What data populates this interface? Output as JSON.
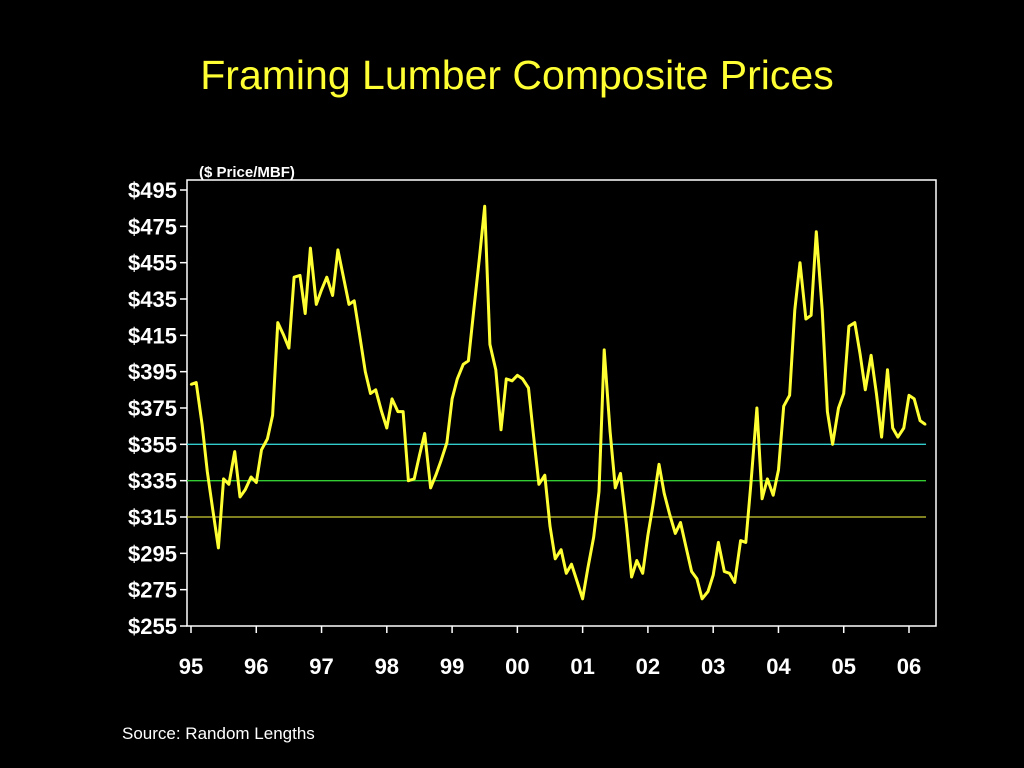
{
  "slide": {
    "title": "Framing Lumber Composite Prices",
    "source": "Source: Random Lengths"
  },
  "colors": {
    "background": "#000000",
    "title": "#ffff33",
    "series": "#ffff33",
    "axis": "#ffffff",
    "ref_355": "#33cccc",
    "ref_335": "#33cc33",
    "ref_315": "#cccc33"
  },
  "chart_data": {
    "type": "line",
    "title": "",
    "ylabel": "($ Price/MBF)",
    "xlabel": "",
    "ylim": [
      255,
      495
    ],
    "yticks": [
      495,
      475,
      455,
      435,
      415,
      395,
      375,
      355,
      335,
      315,
      295,
      275,
      255
    ],
    "ytick_labels": [
      "$495",
      "$475",
      "$455",
      "$435",
      "$415",
      "$395",
      "$375",
      "$355",
      "$335",
      "$315",
      "$295",
      "$275",
      "$255"
    ],
    "xlim": [
      1995.0,
      2006.35
    ],
    "xticks": [
      1995,
      1996,
      1997,
      1998,
      1999,
      2000,
      2001,
      2002,
      2003,
      2004,
      2005,
      2006
    ],
    "xtick_labels": [
      "95",
      "96",
      "97",
      "98",
      "99",
      "00",
      "01",
      "02",
      "03",
      "04",
      "05",
      "06"
    ],
    "grid": false,
    "reference_lines": [
      {
        "y": 355,
        "color": "#33cccc"
      },
      {
        "y": 335,
        "color": "#33cc33"
      },
      {
        "y": 315,
        "color": "#cccc33"
      }
    ],
    "series": [
      {
        "x": [
          1995.0,
          1995.08,
          1995.17,
          1995.25,
          1995.33,
          1995.42,
          1995.5,
          1995.58,
          1995.67,
          1995.75,
          1995.83,
          1995.92,
          1996.0,
          1996.08,
          1996.17,
          1996.25,
          1996.33,
          1996.42,
          1996.5,
          1996.58,
          1996.67,
          1996.75,
          1996.83,
          1996.92,
          1997.0,
          1997.08,
          1997.17,
          1997.25,
          1997.33,
          1997.42,
          1997.5,
          1997.58,
          1997.67,
          1997.75,
          1997.83,
          1997.92,
          1998.0,
          1998.08,
          1998.17,
          1998.25,
          1998.33,
          1998.42,
          1998.5,
          1998.58,
          1998.67,
          1998.75,
          1998.83,
          1998.92,
          1999.0,
          1999.08,
          1999.17,
          1999.25,
          1999.33,
          1999.42,
          1999.5,
          1999.58,
          1999.67,
          1999.75,
          1999.83,
          1999.92,
          2000.0,
          2000.08,
          2000.17,
          2000.25,
          2000.33,
          2000.42,
          2000.5,
          2000.58,
          2000.67,
          2000.75,
          2000.83,
          2000.92,
          2001.0,
          2001.08,
          2001.17,
          2001.25,
          2001.33,
          2001.42,
          2001.5,
          2001.58,
          2001.67,
          2001.75,
          2001.83,
          2001.92,
          2002.0,
          2002.08,
          2002.17,
          2002.25,
          2002.33,
          2002.42,
          2002.5,
          2002.58,
          2002.67,
          2002.75,
          2002.83,
          2002.92,
          2003.0,
          2003.08,
          2003.17,
          2003.25,
          2003.33,
          2003.42,
          2003.5,
          2003.58,
          2003.67,
          2003.75,
          2003.83,
          2003.92,
          2004.0,
          2004.08,
          2004.17,
          2004.25,
          2004.33,
          2004.42,
          2004.5,
          2004.58,
          2004.67,
          2004.75,
          2004.83,
          2004.92,
          2005.0,
          2005.08,
          2005.17,
          2005.25,
          2005.33,
          2005.42,
          2005.5,
          2005.58,
          2005.67,
          2005.75,
          2005.83,
          2005.92,
          2006.0,
          2006.08,
          2006.17,
          2006.25
        ],
        "values": [
          388,
          389,
          366,
          340,
          320,
          298,
          336,
          333,
          351,
          326,
          330,
          337,
          334,
          352,
          358,
          371,
          422,
          415,
          408,
          447,
          448,
          427,
          463,
          432,
          440,
          447,
          437,
          462,
          448,
          432,
          434,
          416,
          395,
          383,
          385,
          373,
          364,
          380,
          373,
          373,
          335,
          336,
          349,
          361,
          331,
          338,
          346,
          356,
          380,
          391,
          399,
          401,
          428,
          458,
          486,
          410,
          396,
          363,
          391,
          390,
          393,
          391,
          386,
          359,
          333,
          338,
          310,
          292,
          297,
          284,
          289,
          279,
          270,
          287,
          304,
          329,
          407,
          362,
          331,
          339,
          311,
          282,
          291,
          284,
          305,
          322,
          344,
          328,
          317,
          306,
          312,
          299,
          285,
          281,
          270,
          274,
          283,
          301,
          285,
          284,
          279,
          302,
          301,
          334,
          375,
          325,
          336,
          327,
          341,
          376,
          382,
          429,
          455,
          424,
          426,
          472,
          429,
          373,
          355,
          375,
          383,
          420,
          422,
          405,
          385,
          404,
          383,
          359,
          396,
          364,
          359,
          364,
          382,
          380,
          368,
          366
        ]
      }
    ]
  }
}
